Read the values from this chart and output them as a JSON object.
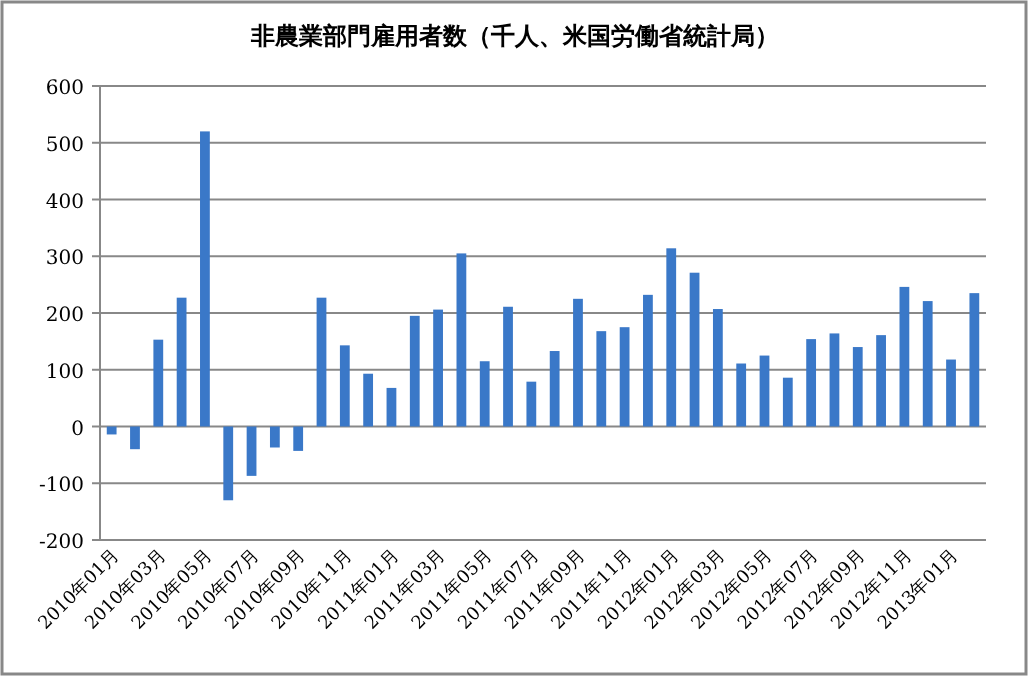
{
  "chart_data": {
    "type": "bar",
    "title": "非農業部門雇用者数（千人、米国労働省統計局）",
    "categories": [
      "2010年01月",
      null,
      "2010年03月",
      null,
      "2010年05月",
      null,
      "2010年07月",
      null,
      "2010年09月",
      null,
      "2010年11月",
      null,
      "2011年01月",
      null,
      "2011年03月",
      null,
      "2011年05月",
      null,
      "2011年07月",
      null,
      "2011年09月",
      null,
      "2011年11月",
      null,
      "2012年01月",
      null,
      "2012年03月",
      null,
      "2012年05月",
      null,
      "2012年07月",
      null,
      "2012年09月",
      null,
      "2012年11月",
      null,
      "2013年01月",
      null
    ],
    "values": [
      -14,
      -40,
      153,
      227,
      520,
      -130,
      -87,
      -37,
      -43,
      227,
      143,
      93,
      68,
      195,
      206,
      305,
      115,
      211,
      79,
      133,
      225,
      168,
      175,
      232,
      314,
      271,
      207,
      111,
      125,
      86,
      154,
      164,
      140,
      161,
      246,
      221,
      118,
      235
    ],
    "color": "#3a78c8",
    "ylim": [
      -200,
      600
    ],
    "yticks": [
      -200,
      -100,
      0,
      100,
      200,
      300,
      400,
      500,
      600
    ],
    "grid": "y"
  }
}
